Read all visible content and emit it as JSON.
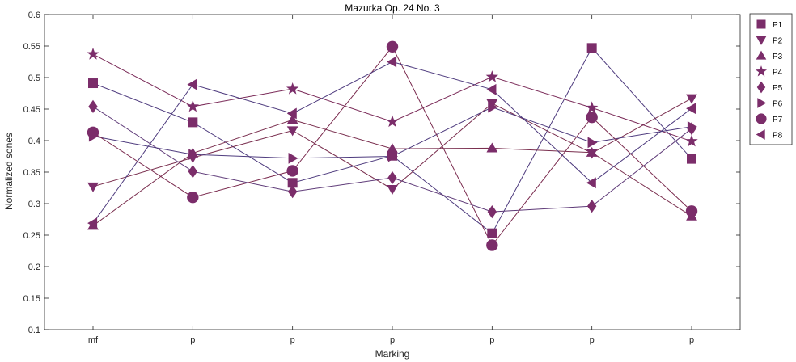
{
  "chart_data": {
    "type": "line",
    "title": "Mazurka Op. 24 No. 3",
    "xlabel": "Marking",
    "ylabel": "Normalized sones",
    "categories": [
      "mf",
      "p",
      "p",
      "p",
      "p",
      "p",
      "p"
    ],
    "ylim": [
      0.1,
      0.6
    ],
    "yticks": [
      "0.1",
      "0.15",
      "0.2",
      "0.25",
      "0.3",
      "0.35",
      "0.4",
      "0.45",
      "0.5",
      "0.55",
      "0.6"
    ],
    "grid": false,
    "legend_position": "outside-right",
    "series": [
      {
        "name": "P1",
        "marker": "square",
        "color": "#4e3b7e",
        "values": [
          0.491,
          0.429,
          0.333,
          0.376,
          0.253,
          0.547,
          0.371
        ]
      },
      {
        "name": "P2",
        "marker": "triangle-down",
        "color": "#7a2f4f",
        "values": [
          0.327,
          0.373,
          0.416,
          0.323,
          0.459,
          0.38,
          0.467
        ]
      },
      {
        "name": "P3",
        "marker": "triangle-up",
        "color": "#7a2f4f",
        "values": [
          0.265,
          0.38,
          0.433,
          0.387,
          0.388,
          0.381,
          0.28
        ]
      },
      {
        "name": "P4",
        "marker": "star",
        "color": "#7a2a58",
        "values": [
          0.537,
          0.454,
          0.482,
          0.43,
          0.501,
          0.452,
          0.399
        ]
      },
      {
        "name": "P5",
        "marker": "diamond",
        "color": "#5e3a78",
        "values": [
          0.454,
          0.351,
          0.319,
          0.341,
          0.287,
          0.296,
          0.419
        ]
      },
      {
        "name": "P6",
        "marker": "triangle-right",
        "color": "#4e3b7e",
        "values": [
          0.407,
          0.378,
          0.372,
          0.375,
          0.453,
          0.397,
          0.422
        ]
      },
      {
        "name": "P7",
        "marker": "circle",
        "color": "#7a2a4e",
        "values": [
          0.413,
          0.31,
          0.352,
          0.549,
          0.234,
          0.437,
          0.288
        ]
      },
      {
        "name": "P8",
        "marker": "triangle-left",
        "color": "#4e3b7e",
        "values": [
          0.269,
          0.489,
          0.443,
          0.525,
          0.481,
          0.333,
          0.451
        ]
      }
    ],
    "marker_fill": "#7b2d6a",
    "axis_color": "#262626"
  }
}
